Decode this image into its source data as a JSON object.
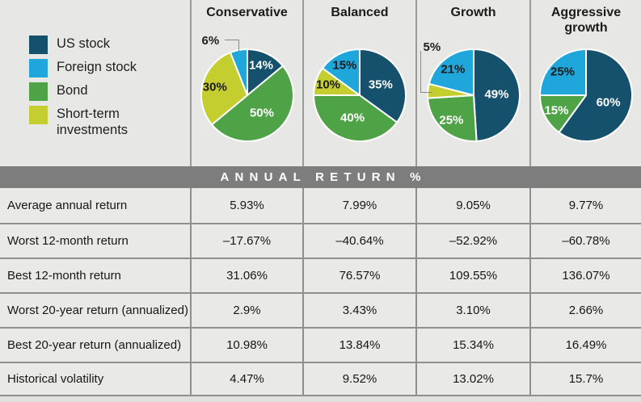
{
  "colors": {
    "us_stock": "#15506d",
    "foreign_stock": "#1fa6da",
    "bond": "#4fa347",
    "short_term": "#c4ce2e",
    "band_bg": "#7d7d7d",
    "band_text": "#ffffff",
    "grid_border": "#8f8f8f"
  },
  "legend": {
    "items": [
      {
        "key": "us_stock",
        "label": "US stock"
      },
      {
        "key": "foreign_stock",
        "label": "Foreign stock"
      },
      {
        "key": "bond",
        "label": "Bond"
      },
      {
        "key": "short_term",
        "label": "Short-term investments"
      }
    ]
  },
  "band": {
    "title": "ANNUAL RETURN %"
  },
  "chart_data": [
    {
      "type": "pie",
      "title": "Conservative",
      "order": "clockwise-from-top",
      "slices": [
        {
          "asset": "us_stock",
          "name": "US stock",
          "pct": 14,
          "label": "14%"
        },
        {
          "asset": "bond",
          "name": "Bond",
          "pct": 50,
          "label": "50%"
        },
        {
          "asset": "short_term",
          "name": "Short-term investments",
          "pct": 30,
          "label": "30%"
        },
        {
          "asset": "foreign_stock",
          "name": "Foreign stock",
          "pct": 6,
          "label": "6%",
          "callout": "ne"
        }
      ]
    },
    {
      "type": "pie",
      "title": "Balanced",
      "order": "clockwise-from-top",
      "slices": [
        {
          "asset": "us_stock",
          "name": "US stock",
          "pct": 35,
          "label": "35%"
        },
        {
          "asset": "bond",
          "name": "Bond",
          "pct": 40,
          "label": "40%"
        },
        {
          "asset": "short_term",
          "name": "Short-term investments",
          "pct": 10,
          "label": "10%"
        },
        {
          "asset": "foreign_stock",
          "name": "Foreign stock",
          "pct": 15,
          "label": "15%"
        }
      ]
    },
    {
      "type": "pie",
      "title": "Growth",
      "order": "clockwise-from-top",
      "slices": [
        {
          "asset": "us_stock",
          "name": "US stock",
          "pct": 49,
          "label": "49%"
        },
        {
          "asset": "bond",
          "name": "Bond",
          "pct": 25,
          "label": "25%"
        },
        {
          "asset": "short_term",
          "name": "Short-term investments",
          "pct": 5,
          "label": "5%",
          "callout": "w"
        },
        {
          "asset": "foreign_stock",
          "name": "Foreign stock",
          "pct": 21,
          "label": "21%"
        }
      ]
    },
    {
      "type": "pie",
      "title": "Aggressive growth",
      "order": "clockwise-from-top",
      "slices": [
        {
          "asset": "us_stock",
          "name": "US stock",
          "pct": 60,
          "label": "60%"
        },
        {
          "asset": "bond",
          "name": "Bond",
          "pct": 15,
          "label": "15%"
        },
        {
          "asset": "foreign_stock",
          "name": "Foreign stock",
          "pct": 25,
          "label": "25%"
        }
      ]
    }
  ],
  "table": {
    "columns": [
      "Conservative",
      "Balanced",
      "Growth",
      "Aggressive growth"
    ],
    "rows": [
      {
        "label": "Average annual return",
        "values": [
          "5.93%",
          "7.99%",
          "9.05%",
          "9.77%"
        ]
      },
      {
        "label": "Worst 12-month return",
        "values": [
          "–17.67%",
          "–40.64%",
          "–52.92%",
          "–60.78%"
        ]
      },
      {
        "label": "Best 12-month return",
        "values": [
          "31.06%",
          "76.57%",
          "109.55%",
          "136.07%"
        ]
      },
      {
        "label": "Worst 20-year return (annualized)",
        "values": [
          "2.9%",
          "3.43%",
          "3.10%",
          "2.66%"
        ]
      },
      {
        "label": "Best 20-year return (annualized)",
        "values": [
          "10.98%",
          "13.84%",
          "15.34%",
          "16.49%"
        ]
      },
      {
        "label": "Historical volatility",
        "values": [
          "4.47%",
          "9.52%",
          "13.02%",
          "15.7%"
        ]
      }
    ]
  }
}
